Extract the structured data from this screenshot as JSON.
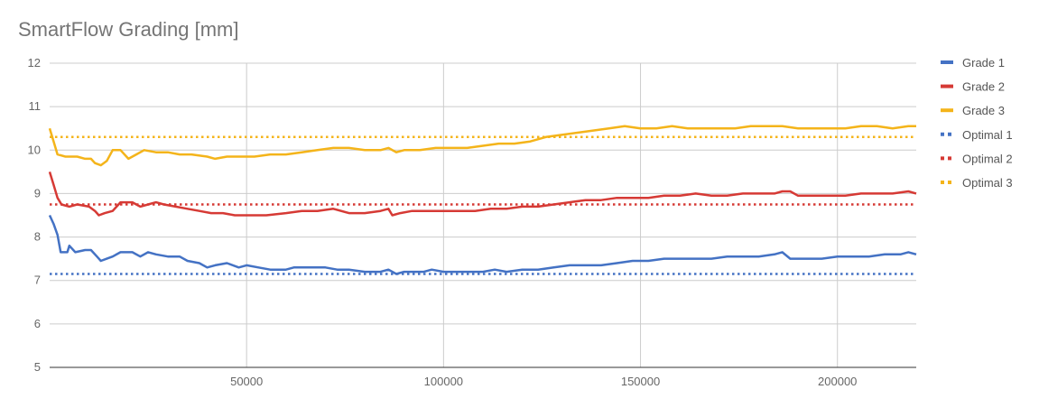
{
  "chart_data": {
    "type": "line",
    "title": "SmartFlow Grading [mm]",
    "xlabel": "",
    "ylabel": "",
    "xlim": [
      0,
      220000
    ],
    "ylim": [
      5,
      12
    ],
    "x_ticks": [
      50000,
      100000,
      150000,
      200000
    ],
    "x_tick_labels": [
      "50000",
      "100000",
      "150000",
      "200000"
    ],
    "y_ticks": [
      5,
      6,
      7,
      8,
      9,
      10,
      11,
      12
    ],
    "y_tick_labels": [
      "5",
      "6",
      "7",
      "8",
      "9",
      "10",
      "11",
      "12"
    ],
    "grid": true,
    "legend_position": "right",
    "series": [
      {
        "name": "Grade 1",
        "color": "#4472c4",
        "style": "solid",
        "points": [
          [
            0,
            8.5
          ],
          [
            1000,
            8.3
          ],
          [
            2000,
            8.05
          ],
          [
            2800,
            7.65
          ],
          [
            4500,
            7.65
          ],
          [
            5000,
            7.8
          ],
          [
            6500,
            7.65
          ],
          [
            9000,
            7.7
          ],
          [
            10500,
            7.7
          ],
          [
            12000,
            7.55
          ],
          [
            13000,
            7.45
          ],
          [
            14500,
            7.5
          ],
          [
            16000,
            7.55
          ],
          [
            18000,
            7.65
          ],
          [
            21000,
            7.65
          ],
          [
            23000,
            7.55
          ],
          [
            25000,
            7.65
          ],
          [
            27000,
            7.6
          ],
          [
            30000,
            7.55
          ],
          [
            33000,
            7.55
          ],
          [
            35000,
            7.45
          ],
          [
            38000,
            7.4
          ],
          [
            40000,
            7.3
          ],
          [
            42000,
            7.35
          ],
          [
            45000,
            7.4
          ],
          [
            48000,
            7.3
          ],
          [
            50000,
            7.35
          ],
          [
            53000,
            7.3
          ],
          [
            56000,
            7.25
          ],
          [
            60000,
            7.25
          ],
          [
            62000,
            7.3
          ],
          [
            66000,
            7.3
          ],
          [
            70000,
            7.3
          ],
          [
            73000,
            7.25
          ],
          [
            76000,
            7.25
          ],
          [
            80000,
            7.2
          ],
          [
            84000,
            7.2
          ],
          [
            86000,
            7.25
          ],
          [
            88000,
            7.15
          ],
          [
            90000,
            7.2
          ],
          [
            93000,
            7.2
          ],
          [
            95000,
            7.2
          ],
          [
            97000,
            7.25
          ],
          [
            100000,
            7.2
          ],
          [
            105000,
            7.2
          ],
          [
            110000,
            7.2
          ],
          [
            113000,
            7.25
          ],
          [
            116000,
            7.2
          ],
          [
            120000,
            7.25
          ],
          [
            124000,
            7.25
          ],
          [
            128000,
            7.3
          ],
          [
            132000,
            7.35
          ],
          [
            136000,
            7.35
          ],
          [
            140000,
            7.35
          ],
          [
            144000,
            7.4
          ],
          [
            148000,
            7.45
          ],
          [
            152000,
            7.45
          ],
          [
            156000,
            7.5
          ],
          [
            160000,
            7.5
          ],
          [
            164000,
            7.5
          ],
          [
            168000,
            7.5
          ],
          [
            172000,
            7.55
          ],
          [
            176000,
            7.55
          ],
          [
            180000,
            7.55
          ],
          [
            184000,
            7.6
          ],
          [
            186000,
            7.65
          ],
          [
            188000,
            7.5
          ],
          [
            192000,
            7.5
          ],
          [
            196000,
            7.5
          ],
          [
            200000,
            7.55
          ],
          [
            204000,
            7.55
          ],
          [
            208000,
            7.55
          ],
          [
            212000,
            7.6
          ],
          [
            216000,
            7.6
          ],
          [
            218000,
            7.65
          ],
          [
            220000,
            7.6
          ]
        ]
      },
      {
        "name": "Grade 2",
        "color": "#d63a35",
        "style": "solid",
        "points": [
          [
            0,
            9.5
          ],
          [
            1000,
            9.2
          ],
          [
            2000,
            8.9
          ],
          [
            3000,
            8.75
          ],
          [
            5000,
            8.7
          ],
          [
            7000,
            8.75
          ],
          [
            10000,
            8.7
          ],
          [
            11500,
            8.6
          ],
          [
            12500,
            8.5
          ],
          [
            14000,
            8.55
          ],
          [
            16000,
            8.6
          ],
          [
            18000,
            8.8
          ],
          [
            21000,
            8.8
          ],
          [
            23000,
            8.7
          ],
          [
            25000,
            8.75
          ],
          [
            27000,
            8.8
          ],
          [
            29000,
            8.75
          ],
          [
            32000,
            8.7
          ],
          [
            35000,
            8.65
          ],
          [
            38000,
            8.6
          ],
          [
            41000,
            8.55
          ],
          [
            44000,
            8.55
          ],
          [
            47000,
            8.5
          ],
          [
            50000,
            8.5
          ],
          [
            55000,
            8.5
          ],
          [
            60000,
            8.55
          ],
          [
            64000,
            8.6
          ],
          [
            68000,
            8.6
          ],
          [
            72000,
            8.65
          ],
          [
            76000,
            8.55
          ],
          [
            80000,
            8.55
          ],
          [
            84000,
            8.6
          ],
          [
            86000,
            8.65
          ],
          [
            87000,
            8.5
          ],
          [
            89000,
            8.55
          ],
          [
            92000,
            8.6
          ],
          [
            96000,
            8.6
          ],
          [
            100000,
            8.6
          ],
          [
            104000,
            8.6
          ],
          [
            108000,
            8.6
          ],
          [
            112000,
            8.65
          ],
          [
            116000,
            8.65
          ],
          [
            120000,
            8.7
          ],
          [
            124000,
            8.7
          ],
          [
            128000,
            8.75
          ],
          [
            132000,
            8.8
          ],
          [
            136000,
            8.85
          ],
          [
            140000,
            8.85
          ],
          [
            144000,
            8.9
          ],
          [
            148000,
            8.9
          ],
          [
            152000,
            8.9
          ],
          [
            156000,
            8.95
          ],
          [
            160000,
            8.95
          ],
          [
            164000,
            9.0
          ],
          [
            168000,
            8.95
          ],
          [
            172000,
            8.95
          ],
          [
            176000,
            9.0
          ],
          [
            180000,
            9.0
          ],
          [
            184000,
            9.0
          ],
          [
            186000,
            9.05
          ],
          [
            188000,
            9.05
          ],
          [
            190000,
            8.95
          ],
          [
            194000,
            8.95
          ],
          [
            198000,
            8.95
          ],
          [
            202000,
            8.95
          ],
          [
            206000,
            9.0
          ],
          [
            210000,
            9.0
          ],
          [
            214000,
            9.0
          ],
          [
            218000,
            9.05
          ],
          [
            220000,
            9.0
          ]
        ]
      },
      {
        "name": "Grade 3",
        "color": "#f4b41a",
        "style": "solid",
        "points": [
          [
            0,
            10.5
          ],
          [
            1000,
            10.2
          ],
          [
            2000,
            9.9
          ],
          [
            4000,
            9.85
          ],
          [
            7000,
            9.85
          ],
          [
            9000,
            9.8
          ],
          [
            10500,
            9.8
          ],
          [
            11500,
            9.7
          ],
          [
            13000,
            9.65
          ],
          [
            14500,
            9.75
          ],
          [
            16000,
            10.0
          ],
          [
            18000,
            10.0
          ],
          [
            20000,
            9.8
          ],
          [
            22000,
            9.9
          ],
          [
            24000,
            10.0
          ],
          [
            27000,
            9.95
          ],
          [
            30000,
            9.95
          ],
          [
            33000,
            9.9
          ],
          [
            36000,
            9.9
          ],
          [
            40000,
            9.85
          ],
          [
            42000,
            9.8
          ],
          [
            45000,
            9.85
          ],
          [
            48000,
            9.85
          ],
          [
            52000,
            9.85
          ],
          [
            56000,
            9.9
          ],
          [
            60000,
            9.9
          ],
          [
            64000,
            9.95
          ],
          [
            68000,
            10.0
          ],
          [
            72000,
            10.05
          ],
          [
            76000,
            10.05
          ],
          [
            80000,
            10.0
          ],
          [
            84000,
            10.0
          ],
          [
            86000,
            10.05
          ],
          [
            88000,
            9.95
          ],
          [
            90000,
            10.0
          ],
          [
            94000,
            10.0
          ],
          [
            98000,
            10.05
          ],
          [
            102000,
            10.05
          ],
          [
            106000,
            10.05
          ],
          [
            110000,
            10.1
          ],
          [
            114000,
            10.15
          ],
          [
            118000,
            10.15
          ],
          [
            122000,
            10.2
          ],
          [
            126000,
            10.3
          ],
          [
            130000,
            10.35
          ],
          [
            134000,
            10.4
          ],
          [
            138000,
            10.45
          ],
          [
            142000,
            10.5
          ],
          [
            146000,
            10.55
          ],
          [
            150000,
            10.5
          ],
          [
            154000,
            10.5
          ],
          [
            158000,
            10.55
          ],
          [
            162000,
            10.5
          ],
          [
            166000,
            10.5
          ],
          [
            170000,
            10.5
          ],
          [
            174000,
            10.5
          ],
          [
            178000,
            10.55
          ],
          [
            182000,
            10.55
          ],
          [
            186000,
            10.55
          ],
          [
            190000,
            10.5
          ],
          [
            194000,
            10.5
          ],
          [
            198000,
            10.5
          ],
          [
            202000,
            10.5
          ],
          [
            206000,
            10.55
          ],
          [
            210000,
            10.55
          ],
          [
            214000,
            10.5
          ],
          [
            218000,
            10.55
          ],
          [
            220000,
            10.55
          ]
        ]
      },
      {
        "name": "Optimal 1",
        "color": "#4472c4",
        "style": "dotted",
        "points": [
          [
            0,
            7.15
          ],
          [
            220000,
            7.15
          ]
        ]
      },
      {
        "name": "Optimal 2",
        "color": "#d63a35",
        "style": "dotted",
        "points": [
          [
            0,
            8.75
          ],
          [
            220000,
            8.75
          ]
        ]
      },
      {
        "name": "Optimal 3",
        "color": "#f4b41a",
        "style": "dotted",
        "points": [
          [
            0,
            10.3
          ],
          [
            220000,
            10.3
          ]
        ]
      }
    ]
  }
}
